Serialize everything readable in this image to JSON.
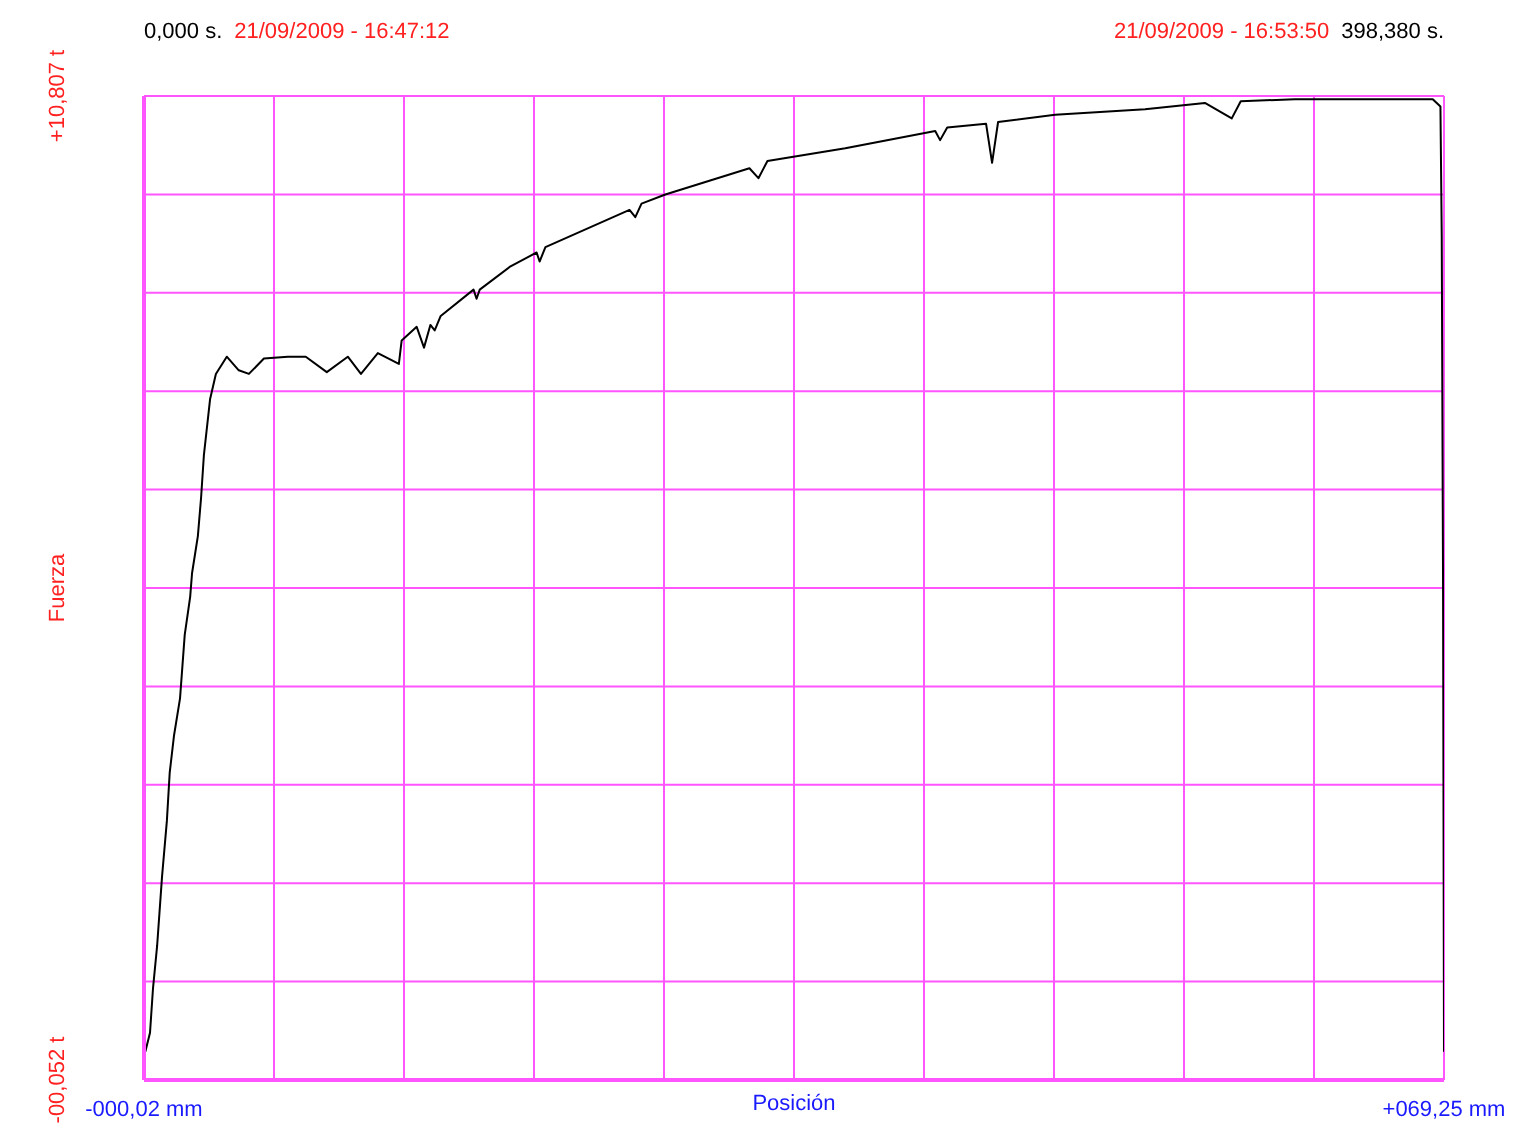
{
  "chart_data": {
    "type": "line",
    "xlabel": "Posición",
    "ylabel": "Fuerza",
    "annotations": [
      "0,000 s.",
      "21/09/2009 - 16:47:12",
      "21/09/2009 - 16:53:50",
      "398,380 s."
    ],
    "xlim": [
      -0.02,
      69.25
    ],
    "xticks": [
      {
        "value": -0.02,
        "label": "-000,02 mm"
      },
      {
        "value": 6.907,
        "label": null
      },
      {
        "value": 13.834,
        "label": null
      },
      {
        "value": 20.761,
        "label": null
      },
      {
        "value": 27.688,
        "label": null
      },
      {
        "value": 34.615,
        "label": null
      },
      {
        "value": 41.542,
        "label": null
      },
      {
        "value": 48.469,
        "label": null
      },
      {
        "value": 55.396,
        "label": null
      },
      {
        "value": 62.323,
        "label": null
      },
      {
        "value": 69.25,
        "label": "+069,25 mm"
      }
    ],
    "ylim": [
      -0.052,
      10.807
    ],
    "yticks": [
      {
        "value": -0.052,
        "label": "-00,052 t"
      },
      {
        "value": 1.0339,
        "label": null
      },
      {
        "value": 2.1198,
        "label": null
      },
      {
        "value": 3.2057,
        "label": null
      },
      {
        "value": 4.2916,
        "label": null
      },
      {
        "value": 5.3775,
        "label": null
      },
      {
        "value": 6.4634,
        "label": null
      },
      {
        "value": 7.5493,
        "label": null
      },
      {
        "value": 8.6352,
        "label": null
      },
      {
        "value": 9.7211,
        "label": null
      },
      {
        "value": 10.807,
        "label": "+10,807 t"
      }
    ],
    "grid": true,
    "marker": "none",
    "line_style": "solid",
    "series": [
      {
        "color": "#000000",
        "x": [
          0.05,
          0.3,
          0.46,
          0.68,
          0.94,
          1.2,
          1.35,
          1.58,
          1.9,
          2.15,
          2.44,
          2.54,
          2.85,
          3.02,
          3.17,
          3.5,
          3.81,
          4.39,
          5.03,
          5.57,
          6.37,
          7.64,
          8.6,
          9.72,
          10.84,
          11.54,
          12.44,
          13.56,
          13.71,
          14.51,
          14.9,
          15.24,
          15.47,
          15.79,
          17.54,
          17.7,
          17.87,
          19.46,
          20.9,
          21.06,
          21.37,
          25.85,
          26.16,
          26.49,
          27.76,
          32.24,
          32.72,
          33.2,
          37.35,
          42.14,
          42.4,
          42.78,
          44.85,
          45.17,
          45.49,
          48.53,
          53.32,
          56.51,
          57.94,
          58.42,
          61.3,
          68.65,
          69.06,
          69.13,
          69.2,
          69.25
        ],
        "values": [
          0.26,
          0.47,
          0.96,
          1.43,
          2.19,
          2.81,
          3.34,
          3.75,
          4.16,
          4.86,
          5.28,
          5.54,
          5.95,
          6.37,
          6.84,
          7.46,
          7.74,
          7.93,
          7.78,
          7.74,
          7.91,
          7.93,
          7.93,
          7.76,
          7.93,
          7.74,
          7.97,
          7.85,
          8.11,
          8.26,
          8.03,
          8.28,
          8.22,
          8.38,
          8.67,
          8.57,
          8.67,
          8.92,
          9.08,
          8.98,
          9.14,
          9.55,
          9.47,
          9.62,
          9.72,
          10.01,
          9.9,
          10.09,
          10.23,
          10.42,
          10.32,
          10.46,
          10.5,
          10.07,
          10.52,
          10.6,
          10.66,
          10.73,
          10.56,
          10.75,
          10.77,
          10.77,
          10.69,
          9.25,
          5.4,
          0.26
        ]
      }
    ]
  }
}
